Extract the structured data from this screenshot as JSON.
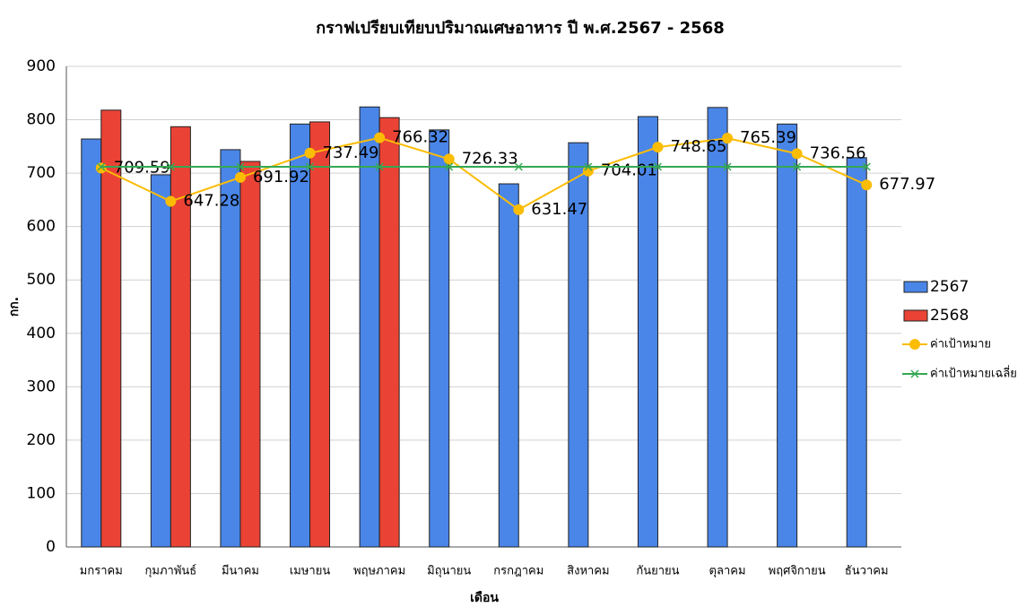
{
  "chart_data": {
    "type": "bar",
    "title": "กราฟเปรียบเทียบปริมาณเศษอาหาร    ปี พ.ศ.2567 - 2568",
    "y_label": "กก.",
    "x_label": "เดือน",
    "categories": [
      "มกราคม",
      "กุมภาพันธ์",
      "มีนาคม",
      "เมษายน",
      "พฤษภาคม",
      "มิถุนายน",
      "กรกฎาคม",
      "สิงหาคม",
      "กันยายน",
      "ตุลาคม",
      "พฤศจิกายน",
      "ธันวาคม"
    ],
    "ylim": [
      0,
      900
    ],
    "yticks": [
      0,
      100,
      200,
      300,
      400,
      500,
      600,
      700,
      800,
      900
    ],
    "grid": true,
    "legend": "right",
    "series": [
      {
        "name": "2567",
        "type": "bar",
        "color": "#4a86e8",
        "values": [
          764,
          697,
          744,
          792,
          824,
          781,
          680,
          757,
          806,
          823,
          792,
          729
        ]
      },
      {
        "name": "2568",
        "type": "bar",
        "color": "#ea4335",
        "values": [
          818,
          787,
          722,
          796,
          804,
          null,
          null,
          null,
          null,
          null,
          null,
          null
        ]
      },
      {
        "name": "ค่าเป้าหมาย",
        "type": "line",
        "marker": "circle",
        "color": "#fbbc04",
        "data_labels": true,
        "values": [
          709.59,
          647.28,
          691.92,
          737.49,
          766.32,
          726.33,
          631.47,
          704.01,
          748.65,
          765.39,
          736.56,
          677.97
        ]
      },
      {
        "name": "ค่าเป้าหมายเฉลี่ย",
        "type": "line",
        "marker": "x",
        "color": "#34a853",
        "values": [
          711.92,
          711.92,
          711.92,
          711.92,
          711.92,
          711.92,
          711.92,
          711.92,
          711.92,
          711.92,
          711.92,
          711.92
        ]
      }
    ]
  }
}
